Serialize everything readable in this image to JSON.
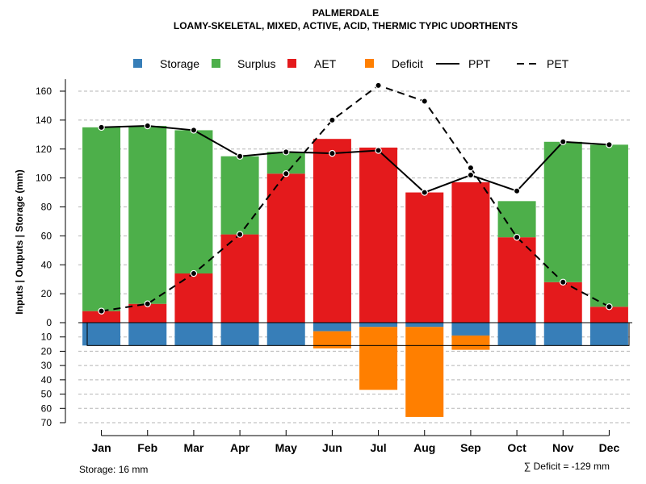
{
  "chart_data": {
    "type": "bar",
    "title": "PALMERDALE",
    "subtitle": "LOAMY-SKELETAL, MIXED, ACTIVE, ACID, THERMIC TYPIC UDORTHENTS",
    "ylabel": "Inputs | Outputs | Storage    (mm)",
    "categories": [
      "Jan",
      "Feb",
      "Mar",
      "Apr",
      "May",
      "Jun",
      "Jul",
      "Aug",
      "Sep",
      "Oct",
      "Nov",
      "Dec"
    ],
    "upper_ylim": [
      0,
      170
    ],
    "upper_ticks": [
      0,
      20,
      40,
      60,
      80,
      100,
      120,
      140,
      160
    ],
    "upper_tick_labels": [
      "0",
      "20",
      "40",
      "60",
      "80",
      "100",
      "120",
      "140",
      "160"
    ],
    "lower_ylim": [
      0,
      70
    ],
    "lower_ticks": [
      10,
      20,
      30,
      40,
      50,
      60,
      70
    ],
    "lower_tick_labels": [
      "10",
      "20",
      "30",
      "40",
      "50",
      "60",
      "70"
    ],
    "series": [
      {
        "name": "AET",
        "key": "aet",
        "color": "#E41A1C",
        "values": [
          8,
          13,
          34,
          61,
          103,
          127,
          121,
          90,
          97,
          59,
          28,
          11
        ]
      },
      {
        "name": "Surplus",
        "key": "surplus",
        "color": "#4DAF4A",
        "values": [
          127,
          123,
          99,
          54,
          15,
          0,
          0,
          0,
          0,
          25,
          97,
          112
        ]
      },
      {
        "name": "Storage",
        "key": "storage",
        "color": "#377EB8",
        "values": [
          16,
          16,
          16,
          16,
          16,
          6,
          3,
          3,
          9,
          16,
          16,
          16
        ]
      },
      {
        "name": "Deficit",
        "key": "deficit",
        "color": "#FF7F00",
        "values": [
          0,
          0,
          0,
          0,
          0,
          12,
          44,
          63,
          10,
          0,
          0,
          0
        ]
      },
      {
        "name": "PPT",
        "key": "ppt",
        "color": "#000000",
        "line": "solid",
        "values": [
          135,
          136,
          133,
          115,
          118,
          117,
          119,
          90,
          102,
          91,
          125,
          123
        ]
      },
      {
        "name": "PET",
        "key": "pet",
        "color": "#000000",
        "line": "dashed",
        "values": [
          8,
          13,
          34,
          61,
          103,
          140,
          164,
          153,
          107,
          59,
          28,
          11
        ]
      }
    ],
    "legend": {
      "placement": "top",
      "items": [
        {
          "label": "Storage",
          "color": "#377EB8",
          "kind": "square"
        },
        {
          "label": "Surplus",
          "color": "#4DAF4A",
          "kind": "square"
        },
        {
          "label": "AET",
          "color": "#E41A1C",
          "kind": "square"
        },
        {
          "label": "Deficit",
          "color": "#FF7F00",
          "kind": "square"
        },
        {
          "label": "PPT",
          "color": "#000000",
          "kind": "solid-line"
        },
        {
          "label": "PET",
          "color": "#000000",
          "kind": "dashed-line"
        }
      ]
    },
    "storage_capacity": 16,
    "storage_note": "Storage: 16 mm",
    "deficit_note": "∑ Deficit = -129 mm",
    "grid": true
  }
}
